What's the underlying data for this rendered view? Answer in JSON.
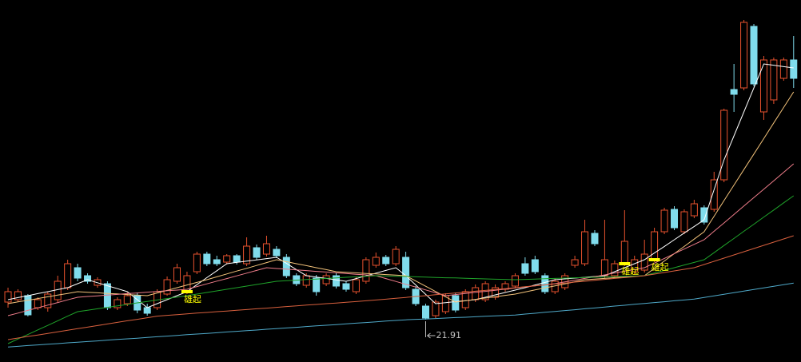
{
  "chart_data": {
    "type": "candlestick",
    "ylim": [
      19.26,
      41.91
    ],
    "up_color": "#e8522e",
    "down_color": "#80dcec",
    "signal_color": "#ffff00",
    "categories": [
      null,
      null,
      null,
      null,
      null,
      null,
      null,
      null,
      null,
      null,
      null,
      null,
      null,
      null,
      null,
      null,
      null,
      null,
      null,
      null,
      null,
      null,
      null,
      null,
      null,
      null,
      null,
      null,
      null,
      null,
      null,
      null,
      null,
      null,
      null,
      null,
      null,
      null,
      null,
      null,
      null,
      null,
      null,
      null,
      null,
      null,
      null,
      null,
      null,
      null,
      null,
      null,
      null,
      null,
      null,
      null,
      null,
      null,
      null,
      null,
      null,
      null,
      null,
      null,
      null,
      null,
      null,
      null,
      null,
      null,
      null,
      null,
      null,
      null,
      null,
      null,
      null,
      null,
      null,
      null
    ],
    "open": [
      23.01,
      23.16,
      23.41,
      22.66,
      22.66,
      23.16,
      23.91,
      25.16,
      24.66,
      24.06,
      24.16,
      22.66,
      22.91,
      23.41,
      22.66,
      22.66,
      23.51,
      24.31,
      23.66,
      24.91,
      26.01,
      25.66,
      25.51,
      25.91,
      25.41,
      26.41,
      26.01,
      26.31,
      25.81,
      24.66,
      24.06,
      24.51,
      24.16,
      24.66,
      24.16,
      23.66,
      24.31,
      25.31,
      25.81,
      25.41,
      25.81,
      23.81,
      22.76,
      22.16,
      22.41,
      23.41,
      22.66,
      23.16,
      23.16,
      23.31,
      23.81,
      24.01,
      25.41,
      25.66,
      24.66,
      23.66,
      23.91,
      25.31,
      25.41,
      27.31,
      24.66,
      24.66,
      25.41,
      24.91,
      25.01,
      25.66,
      27.41,
      28.81,
      27.41,
      28.41,
      28.91,
      28.81,
      30.66,
      36.31,
      36.41,
      40.26,
      34.91,
      35.66,
      37.01,
      38.16
    ],
    "high": [
      23.91,
      23.81,
      23.51,
      23.31,
      23.66,
      24.66,
      25.66,
      25.41,
      24.81,
      24.56,
      24.31,
      23.31,
      23.61,
      23.61,
      22.91,
      23.81,
      24.61,
      25.41,
      24.91,
      26.16,
      26.16,
      25.91,
      26.01,
      26.01,
      27.06,
      26.61,
      27.16,
      26.51,
      26.01,
      24.81,
      24.81,
      24.71,
      24.81,
      24.81,
      24.31,
      24.56,
      25.81,
      26.11,
      25.96,
      26.51,
      26.16,
      24.01,
      22.91,
      23.16,
      23.56,
      23.61,
      23.81,
      24.11,
      24.31,
      24.11,
      24.31,
      24.81,
      25.81,
      25.91,
      24.81,
      24.51,
      24.81,
      25.91,
      28.16,
      27.51,
      28.16,
      25.61,
      28.76,
      25.91,
      26.91,
      27.66,
      28.91,
      29.01,
      28.81,
      29.41,
      29.06,
      31.16,
      35.11,
      37.91,
      40.66,
      40.41,
      38.41,
      38.31,
      38.31,
      39.66
    ],
    "low": [
      22.66,
      23.01,
      22.11,
      22.51,
      22.41,
      23.01,
      23.76,
      24.31,
      24.16,
      23.91,
      22.51,
      22.51,
      22.76,
      22.31,
      22.16,
      22.51,
      23.41,
      24.16,
      23.51,
      24.76,
      25.26,
      25.26,
      25.36,
      25.36,
      25.26,
      25.66,
      25.86,
      25.76,
      24.51,
      24.01,
      23.91,
      23.41,
      24.01,
      23.86,
      23.66,
      23.51,
      24.16,
      25.16,
      25.26,
      25.26,
      23.76,
      22.76,
      21.91,
      22.01,
      22.26,
      22.36,
      22.51,
      23.01,
      23.01,
      23.16,
      23.66,
      23.86,
      24.66,
      24.76,
      23.51,
      23.51,
      23.76,
      25.16,
      25.26,
      26.51,
      24.51,
      24.51,
      25.26,
      24.76,
      24.86,
      25.51,
      27.26,
      27.51,
      27.26,
      28.26,
      27.86,
      28.66,
      30.51,
      34.91,
      36.26,
      36.51,
      34.41,
      35.41,
      36.86,
      36.41
    ],
    "close": [
      23.66,
      23.66,
      22.21,
      23.16,
      23.51,
      24.31,
      25.41,
      24.51,
      24.31,
      24.41,
      22.66,
      23.16,
      23.41,
      22.51,
      22.31,
      23.66,
      24.41,
      25.16,
      24.66,
      26.01,
      25.41,
      25.41,
      25.91,
      25.51,
      26.51,
      25.81,
      26.66,
      25.91,
      24.66,
      24.16,
      24.66,
      23.66,
      24.66,
      24.01,
      23.81,
      24.41,
      25.66,
      25.81,
      25.41,
      26.31,
      23.91,
      22.91,
      22.01,
      23.01,
      23.41,
      22.51,
      23.66,
      23.91,
      24.16,
      23.91,
      24.16,
      24.66,
      24.81,
      24.91,
      23.66,
      24.31,
      24.66,
      25.66,
      27.41,
      26.66,
      25.66,
      25.41,
      26.81,
      25.66,
      26.01,
      27.41,
      28.76,
      27.66,
      28.66,
      29.16,
      28.01,
      30.66,
      35.01,
      36.01,
      40.51,
      36.66,
      38.16,
      38.16,
      38.16,
      37.01
    ],
    "signals": [
      null,
      null,
      null,
      null,
      null,
      null,
      null,
      null,
      null,
      null,
      null,
      null,
      null,
      null,
      null,
      null,
      null,
      null,
      "雄起",
      null,
      null,
      null,
      null,
      null,
      null,
      null,
      null,
      null,
      null,
      null,
      null,
      null,
      null,
      null,
      null,
      null,
      null,
      null,
      null,
      null,
      null,
      null,
      null,
      null,
      null,
      null,
      null,
      null,
      null,
      null,
      null,
      null,
      null,
      null,
      null,
      null,
      null,
      null,
      null,
      null,
      null,
      null,
      "雄起",
      null,
      null,
      "雄起",
      null,
      null,
      null,
      null,
      null,
      null,
      null,
      null,
      null,
      null,
      null,
      null,
      null,
      null
    ],
    "moving_averages": [
      {
        "color": "#ffffff",
        "values": [
          23.16,
          23.29,
          23.41,
          23.54,
          23.66,
          23.79,
          23.91,
          24.16,
          24.41,
          24.22,
          24.03,
          23.85,
          23.66,
          23.16,
          22.66,
          22.91,
          23.16,
          23.41,
          23.66,
          24.1,
          24.54,
          24.97,
          25.41,
          25.49,
          25.57,
          25.65,
          25.73,
          25.81,
          25.43,
          25.04,
          24.66,
          24.57,
          24.49,
          24.4,
          24.31,
          24.48,
          24.65,
          24.82,
          24.99,
          25.16,
          24.66,
          24.08,
          23.49,
          22.91,
          22.97,
          23.04,
          23.1,
          23.16,
          23.31,
          23.46,
          23.61,
          23.76,
          23.91,
          24.08,
          24.24,
          24.41,
          24.46,
          24.51,
          24.56,
          24.61,
          24.66,
          24.91,
          25.16,
          25.41,
          25.66,
          26.08,
          26.49,
          26.91,
          27.33,
          27.74,
          28.16,
          30.04,
          31.91,
          33.41,
          34.91,
          36.41,
          37.91,
          37.83,
          37.74,
          37.66
        ]
      },
      {
        "color": "#f2c27a",
        "values": [
          22.91,
          23.02,
          23.12,
          23.23,
          23.34,
          23.45,
          23.55,
          23.66,
          23.62,
          23.59,
          23.55,
          23.52,
          23.48,
          23.45,
          23.41,
          23.58,
          23.74,
          23.91,
          24.08,
          24.24,
          24.41,
          24.59,
          24.77,
          24.95,
          25.12,
          25.3,
          25.48,
          25.66,
          25.54,
          25.41,
          25.29,
          25.16,
          25.04,
          24.91,
          24.87,
          24.84,
          24.8,
          24.77,
          24.73,
          24.7,
          24.66,
          24.33,
          24.0,
          23.67,
          23.34,
          23.01,
          23.09,
          23.18,
          23.26,
          23.34,
          23.43,
          23.51,
          23.64,
          23.77,
          23.9,
          24.02,
          24.15,
          24.28,
          24.41,
          24.45,
          24.49,
          24.54,
          24.58,
          24.62,
          24.66,
          25.12,
          25.58,
          26.04,
          26.49,
          26.95,
          27.41,
          28.38,
          29.36,
          30.33,
          31.3,
          32.27,
          33.24,
          34.22,
          35.19,
          36.16
        ]
      },
      {
        "color": "#ef7d8a",
        "values": [
          22.16,
          22.32,
          22.49,
          22.65,
          22.82,
          22.98,
          23.15,
          23.31,
          23.36,
          23.4,
          23.45,
          23.49,
          23.54,
          23.58,
          23.63,
          23.67,
          23.72,
          23.76,
          23.81,
          23.98,
          24.15,
          24.32,
          24.48,
          24.65,
          24.82,
          24.99,
          25.16,
          25.11,
          25.07,
          25.02,
          24.98,
          24.93,
          24.89,
          24.84,
          24.8,
          24.75,
          24.71,
          24.66,
          24.48,
          24.3,
          24.12,
          23.95,
          23.77,
          23.59,
          23.41,
          23.48,
          23.55,
          23.62,
          23.68,
          23.75,
          23.82,
          23.89,
          23.96,
          24.02,
          24.09,
          24.16,
          24.27,
          24.38,
          24.49,
          24.6,
          24.71,
          24.83,
          24.94,
          25.05,
          25.16,
          25.45,
          25.74,
          26.04,
          26.33,
          26.62,
          26.91,
          27.44,
          27.96,
          28.49,
          29.02,
          29.55,
          30.07,
          30.6,
          31.13,
          31.66
        ]
      },
      {
        "color": "#1fa32a",
        "values": [
          20.41,
          20.7,
          20.98,
          21.27,
          21.55,
          21.84,
          22.13,
          22.41,
          22.5,
          22.59,
          22.68,
          22.77,
          22.86,
          22.96,
          23.05,
          23.14,
          23.23,
          23.32,
          23.41,
          23.51,
          23.61,
          23.71,
          23.81,
          23.91,
          24.01,
          24.11,
          24.21,
          24.31,
          24.35,
          24.38,
          24.42,
          24.45,
          24.49,
          24.52,
          24.56,
          24.59,
          24.63,
          24.66,
          24.64,
          24.62,
          24.61,
          24.59,
          24.57,
          24.55,
          24.53,
          24.52,
          24.5,
          24.48,
          24.46,
          24.44,
          24.43,
          24.41,
          24.43,
          24.45,
          24.47,
          24.49,
          24.51,
          24.53,
          24.55,
          24.56,
          24.58,
          24.6,
          24.62,
          24.64,
          24.66,
          24.83,
          24.99,
          25.16,
          25.33,
          25.49,
          25.66,
          26.1,
          26.55,
          26.99,
          27.44,
          27.88,
          28.33,
          28.77,
          29.22,
          29.66
        ]
      },
      {
        "color": "#d8603e",
        "values": [
          20.66,
          20.76,
          20.86,
          20.95,
          21.05,
          21.15,
          21.25,
          21.35,
          21.44,
          21.54,
          21.64,
          21.74,
          21.84,
          21.93,
          22.03,
          22.13,
          22.18,
          22.22,
          22.27,
          22.32,
          22.36,
          22.41,
          22.45,
          22.5,
          22.54,
          22.59,
          22.63,
          22.68,
          22.73,
          22.77,
          22.82,
          22.86,
          22.91,
          22.95,
          23.0,
          23.04,
          23.09,
          23.14,
          23.19,
          23.25,
          23.3,
          23.36,
          23.41,
          23.47,
          23.52,
          23.58,
          23.63,
          23.69,
          23.74,
          23.8,
          23.85,
          23.91,
          23.97,
          24.03,
          24.08,
          24.14,
          24.2,
          24.26,
          24.31,
          24.37,
          24.43,
          24.49,
          24.54,
          24.6,
          24.66,
          24.76,
          24.86,
          24.96,
          25.06,
          25.16,
          25.36,
          25.56,
          25.76,
          25.96,
          26.16,
          26.36,
          26.56,
          26.76,
          26.96,
          27.16
        ]
      },
      {
        "color": "#4fa9c9",
        "values": [
          20.2,
          20.24,
          20.29,
          20.33,
          20.37,
          20.41,
          20.46,
          20.5,
          20.54,
          20.58,
          20.63,
          20.67,
          20.71,
          20.75,
          20.8,
          20.84,
          20.88,
          20.92,
          20.97,
          21.01,
          21.05,
          21.09,
          21.14,
          21.18,
          21.22,
          21.26,
          21.31,
          21.35,
          21.39,
          21.43,
          21.48,
          21.52,
          21.56,
          21.6,
          21.65,
          21.69,
          21.73,
          21.77,
          21.82,
          21.86,
          21.9,
          21.93,
          21.95,
          21.98,
          22.01,
          22.04,
          22.06,
          22.09,
          22.12,
          22.15,
          22.17,
          22.2,
          22.26,
          22.31,
          22.37,
          22.42,
          22.48,
          22.53,
          22.59,
          22.64,
          22.7,
          22.76,
          22.81,
          22.87,
          22.92,
          22.98,
          23.03,
          23.09,
          23.14,
          23.2,
          23.3,
          23.4,
          23.5,
          23.6,
          23.7,
          23.8,
          23.9,
          24.0,
          24.1,
          24.2
        ]
      }
    ]
  }
}
